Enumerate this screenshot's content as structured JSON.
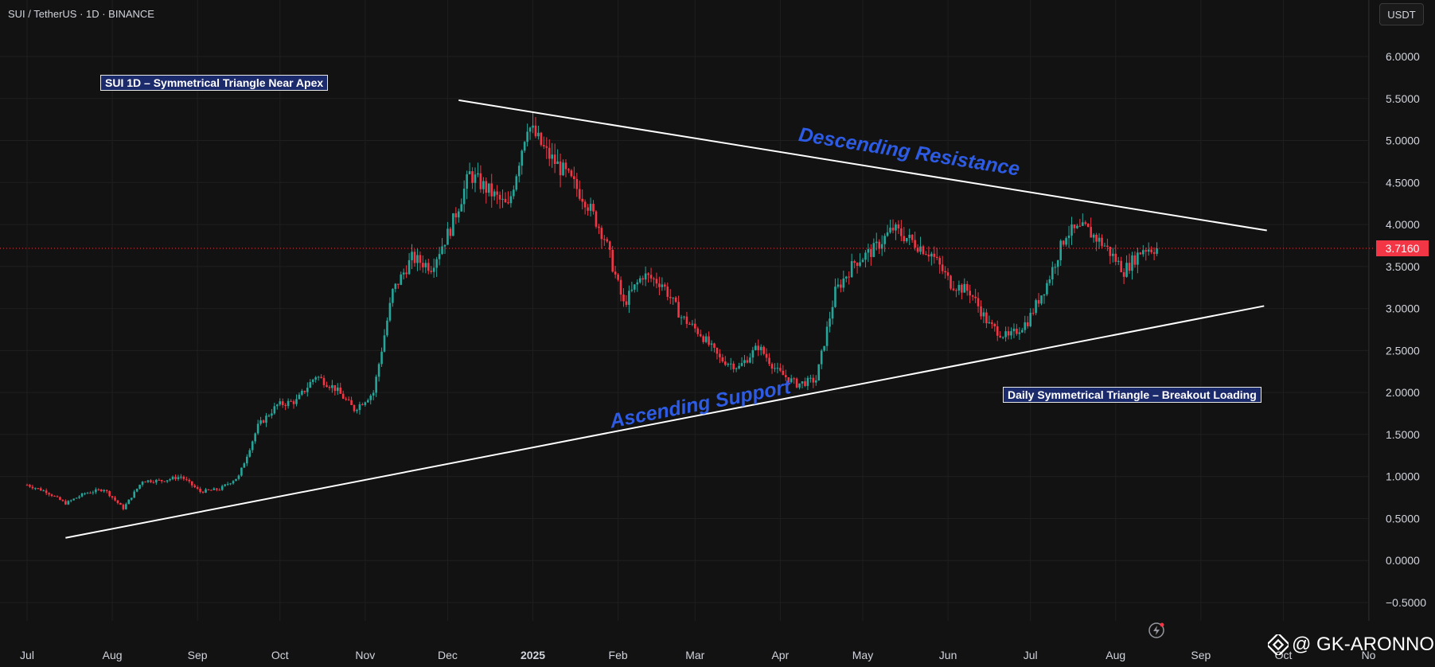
{
  "header": {
    "symbol": "SUI / TetherUS · 1D · BINANCE",
    "currency": "USDT"
  },
  "annotations": {
    "title_note": "SUI 1D – Symmetrical Triangle Near Apex",
    "bottom_note": "Daily Symmetrical Triangle – Breakout Loading",
    "resistance_label": "Descending Resistance",
    "support_label": "Ascending Support"
  },
  "last_price": "3.7160",
  "watermark": "@ GK-ARONNO",
  "colors": {
    "up": "#26a69a",
    "down": "#f23645",
    "background": "#121212",
    "trendline": "#ffffff",
    "note_fill": "#1b2a6b",
    "trend_label": "#2d5be3"
  },
  "chart_data": {
    "type": "candlestick",
    "title": "",
    "x_ticks": [
      "Jul",
      "Aug",
      "Sep",
      "Oct",
      "Nov",
      "Dec",
      "2025",
      "Feb",
      "Mar",
      "Apr",
      "May",
      "Jun",
      "Jul",
      "Aug",
      "Sep",
      "Oct",
      "No"
    ],
    "y_ticks": [
      "6.0000",
      "5.5000",
      "5.0000",
      "4.5000",
      "4.0000",
      "3.5000",
      "3.0000",
      "2.5000",
      "2.0000",
      "1.5000",
      "1.0000",
      "0.5000",
      "0.0000",
      "−0.5000"
    ],
    "ylim": [
      -0.75,
      6.6
    ],
    "last_price": 3.716,
    "trendlines": [
      {
        "name": "Descending Resistance",
        "start": {
          "date": "2024-12-05",
          "price": 5.48
        },
        "end": {
          "date": "2025-09-25",
          "price": 3.93
        }
      },
      {
        "name": "Ascending Support",
        "start": {
          "date": "2024-07-15",
          "price": 0.27
        },
        "end": {
          "date": "2025-09-24",
          "price": 3.03
        }
      }
    ],
    "closes_weekly": [
      {
        "date": "2024-07-01",
        "close": 0.9
      },
      {
        "date": "2024-07-08",
        "close": 0.82
      },
      {
        "date": "2024-07-15",
        "close": 0.68
      },
      {
        "date": "2024-07-22",
        "close": 0.8
      },
      {
        "date": "2024-07-29",
        "close": 0.85
      },
      {
        "date": "2024-08-05",
        "close": 0.62
      },
      {
        "date": "2024-08-12",
        "close": 0.95
      },
      {
        "date": "2024-08-19",
        "close": 0.95
      },
      {
        "date": "2024-08-26",
        "close": 1.0
      },
      {
        "date": "2024-09-02",
        "close": 0.82
      },
      {
        "date": "2024-09-09",
        "close": 0.85
      },
      {
        "date": "2024-09-16",
        "close": 1.0
      },
      {
        "date": "2024-09-23",
        "close": 1.6
      },
      {
        "date": "2024-09-30",
        "close": 1.85
      },
      {
        "date": "2024-10-07",
        "close": 1.9
      },
      {
        "date": "2024-10-14",
        "close": 2.2
      },
      {
        "date": "2024-10-21",
        "close": 2.05
      },
      {
        "date": "2024-10-28",
        "close": 1.8
      },
      {
        "date": "2024-11-04",
        "close": 2.0
      },
      {
        "date": "2024-11-11",
        "close": 3.2
      },
      {
        "date": "2024-11-18",
        "close": 3.6
      },
      {
        "date": "2024-11-25",
        "close": 3.5
      },
      {
        "date": "2024-12-02",
        "close": 3.95
      },
      {
        "date": "2024-12-09",
        "close": 4.6
      },
      {
        "date": "2024-12-16",
        "close": 4.4
      },
      {
        "date": "2024-12-23",
        "close": 4.2
      },
      {
        "date": "2024-12-30",
        "close": 5.2
      },
      {
        "date": "2025-01-06",
        "close": 4.85
      },
      {
        "date": "2025-01-13",
        "close": 4.6
      },
      {
        "date": "2025-01-20",
        "close": 4.3
      },
      {
        "date": "2025-01-27",
        "close": 3.85
      },
      {
        "date": "2025-02-03",
        "close": 3.05
      },
      {
        "date": "2025-02-10",
        "close": 3.4
      },
      {
        "date": "2025-02-17",
        "close": 3.3
      },
      {
        "date": "2025-02-24",
        "close": 2.9
      },
      {
        "date": "2025-03-03",
        "close": 2.7
      },
      {
        "date": "2025-03-10",
        "close": 2.4
      },
      {
        "date": "2025-03-17",
        "close": 2.3
      },
      {
        "date": "2025-03-24",
        "close": 2.55
      },
      {
        "date": "2025-03-31",
        "close": 2.25
      },
      {
        "date": "2025-04-07",
        "close": 2.1
      },
      {
        "date": "2025-04-14",
        "close": 2.15
      },
      {
        "date": "2025-04-21",
        "close": 3.2
      },
      {
        "date": "2025-04-28",
        "close": 3.55
      },
      {
        "date": "2025-05-05",
        "close": 3.7
      },
      {
        "date": "2025-05-12",
        "close": 3.95
      },
      {
        "date": "2025-05-19",
        "close": 3.8
      },
      {
        "date": "2025-05-26",
        "close": 3.65
      },
      {
        "date": "2025-06-02",
        "close": 3.3
      },
      {
        "date": "2025-06-09",
        "close": 3.2
      },
      {
        "date": "2025-06-16",
        "close": 2.8
      },
      {
        "date": "2025-06-23",
        "close": 2.65
      },
      {
        "date": "2025-06-30",
        "close": 2.85
      },
      {
        "date": "2025-07-07",
        "close": 3.3
      },
      {
        "date": "2025-07-14",
        "close": 3.9
      },
      {
        "date": "2025-07-21",
        "close": 3.95
      },
      {
        "date": "2025-07-28",
        "close": 3.75
      },
      {
        "date": "2025-08-04",
        "close": 3.45
      },
      {
        "date": "2025-08-11",
        "close": 3.716
      }
    ]
  }
}
